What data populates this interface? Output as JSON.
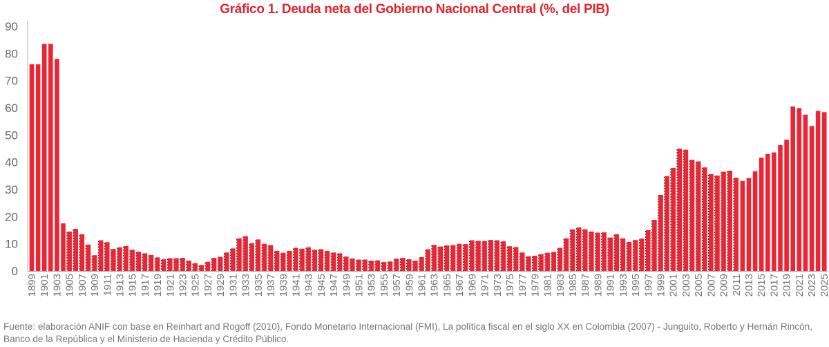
{
  "chart_data": {
    "type": "bar",
    "title": "Gráfico 1. Deuda neta del Gobierno Nacional Central (%, del PIB)",
    "xlabel": "",
    "ylabel": "",
    "ylim": [
      0,
      90
    ],
    "yticks": [
      "0",
      "10",
      "20",
      "30",
      "40",
      "50",
      "60",
      "70",
      "80",
      "90"
    ],
    "grid": false,
    "bar_color": "#ec2534",
    "dotted_outline_years": [
      1905,
      2011
    ],
    "categories": [
      1899,
      1900,
      1901,
      1902,
      1903,
      1904,
      1905,
      1906,
      1907,
      1908,
      1909,
      1910,
      1911,
      1912,
      1913,
      1914,
      1915,
      1916,
      1917,
      1918,
      1919,
      1920,
      1921,
      1922,
      1923,
      1924,
      1925,
      1926,
      1927,
      1928,
      1929,
      1930,
      1931,
      1932,
      1933,
      1934,
      1935,
      1936,
      1937,
      1938,
      1939,
      1940,
      1941,
      1942,
      1943,
      1944,
      1945,
      1946,
      1947,
      1948,
      1949,
      1950,
      1951,
      1952,
      1953,
      1954,
      1955,
      1956,
      1957,
      1958,
      1959,
      1960,
      1961,
      1962,
      1963,
      1964,
      1965,
      1966,
      1967,
      1968,
      1969,
      1970,
      1971,
      1972,
      1973,
      1974,
      1975,
      1976,
      1977,
      1978,
      1979,
      1980,
      1981,
      1982,
      1983,
      1984,
      1985,
      1986,
      1987,
      1988,
      1989,
      1990,
      1991,
      1992,
      1993,
      1994,
      1995,
      1996,
      1997,
      1998,
      1999,
      2000,
      2001,
      2002,
      2003,
      2004,
      2005,
      2006,
      2007,
      2008,
      2009,
      2010,
      2011,
      2012,
      2013,
      2014,
      2015,
      2016,
      2017,
      2018,
      2019,
      2020,
      2021,
      2022,
      2023,
      2024,
      2025
    ],
    "values": [
      76,
      76,
      83.5,
      83.5,
      78,
      17.5,
      14.5,
      15.5,
      13.5,
      9.7,
      5.8,
      11.3,
      10.6,
      8.1,
      8.7,
      9.2,
      7.8,
      7.1,
      6.5,
      5.9,
      5.0,
      4.3,
      4.7,
      4.7,
      4.8,
      3.8,
      2.9,
      2.2,
      3.4,
      4.8,
      5.2,
      6.8,
      8.3,
      12.0,
      12.8,
      10.2,
      11.6,
      10.0,
      9.5,
      7.4,
      6.7,
      7.4,
      8.5,
      8.2,
      8.7,
      7.8,
      8.0,
      7.4,
      6.8,
      6.5,
      5.3,
      4.6,
      4.2,
      4.2,
      3.8,
      3.9,
      3.3,
      3.5,
      4.5,
      4.8,
      4.3,
      3.8,
      5.1,
      8.0,
      9.6,
      9.0,
      9.4,
      9.5,
      10.0,
      9.9,
      11.3,
      11.1,
      11.0,
      11.4,
      11.3,
      10.9,
      9.1,
      8.8,
      6.8,
      5.4,
      5.6,
      6.2,
      6.7,
      7.0,
      8.5,
      12.0,
      15.3,
      16.0,
      15.3,
      14.5,
      14.1,
      14.2,
      12.3,
      13.5,
      12.0,
      10.7,
      11.4,
      11.9,
      15.0,
      18.8,
      28.0,
      34.9,
      37.9,
      45.0,
      44.6,
      40.9,
      40.3,
      38.1,
      35.6,
      35.1,
      36.5,
      36.9,
      34.3,
      33.1,
      34.2,
      36.7,
      41.7,
      43.0,
      43.6,
      46.3,
      48.3,
      60.5,
      59.9,
      57.5,
      53.3,
      58.9,
      58.4
    ]
  },
  "footnote": "Fuente: elaboración ANIF con base en Reinhart and Rogoff (2010), Fondo Monetario Internacional (FMI), La política fiscal en el siglo XX en Colombia (2007) - Junguito, Roberto y Hernán Rincón, Banco de la República y el Ministerio de Hacienda y Crédito Público."
}
